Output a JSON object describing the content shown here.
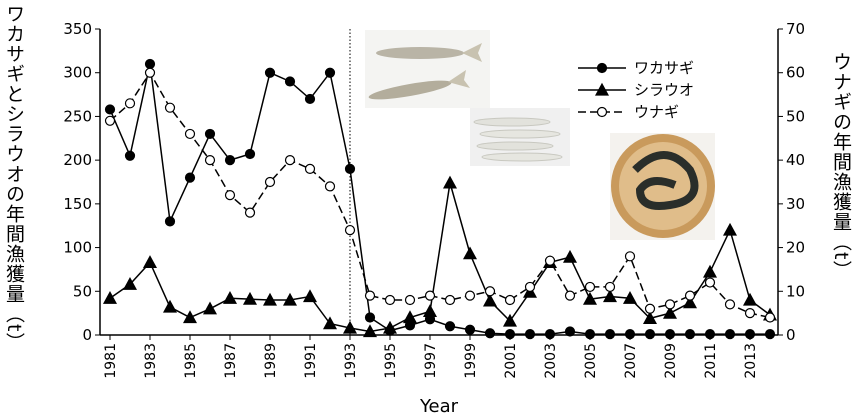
{
  "chart_data": {
    "type": "line",
    "xlabel": "Year",
    "ylabel": "ワカサギとシラウオの年間漁獲量（t）",
    "y2label": "ウナギの年間漁獲量（t）",
    "x": [
      1981,
      1982,
      1983,
      1984,
      1985,
      1986,
      1987,
      1988,
      1989,
      1990,
      1991,
      1992,
      1993,
      1994,
      1995,
      1996,
      1997,
      1998,
      1999,
      2000,
      2001,
      2002,
      2003,
      2004,
      2005,
      2006,
      2007,
      2008,
      2009,
      2010,
      2011,
      2012,
      2013,
      2014
    ],
    "xlim": [
      1980.5,
      2014.4
    ],
    "xticks": [
      1981,
      1983,
      1985,
      1987,
      1989,
      1991,
      1993,
      1995,
      1997,
      1999,
      2001,
      2003,
      2005,
      2007,
      2009,
      2011,
      2013
    ],
    "ylim": [
      0,
      350
    ],
    "yticks": [
      0,
      50,
      100,
      150,
      200,
      250,
      300,
      350
    ],
    "y2lim": [
      0,
      70
    ],
    "y2ticks": [
      0,
      10,
      20,
      30,
      40,
      50,
      60,
      70
    ],
    "vline": 1993,
    "series": [
      {
        "name": "ワカサギ",
        "color": "#000000",
        "marker": "circle-filled",
        "dash": false,
        "values": [
          258,
          205,
          310,
          130,
          180,
          230,
          200,
          207,
          300,
          290,
          270,
          300,
          190,
          20,
          5,
          11,
          18,
          10,
          6,
          2,
          1,
          1,
          1,
          4,
          1,
          1,
          1,
          1,
          1,
          1,
          1,
          1,
          1,
          1
        ]
      },
      {
        "name": "シラウオ",
        "color": "#000000",
        "marker": "triangle",
        "dash": false,
        "values": [
          42,
          58,
          83,
          32,
          20,
          30,
          42,
          41,
          40,
          40,
          44,
          13,
          8,
          4,
          8,
          20,
          27,
          174,
          93,
          39,
          16,
          49,
          83,
          89,
          41,
          44,
          42,
          19,
          25,
          37,
          72,
          120,
          40,
          23
        ]
      },
      {
        "name": "ウナギ",
        "color": "#000000",
        "marker": "circle-open",
        "dash": true,
        "axis": "y2",
        "values": [
          49,
          53,
          60,
          52,
          46,
          40,
          32,
          28,
          35,
          40,
          38,
          34,
          24,
          9,
          8,
          8,
          9,
          8,
          9,
          10,
          8,
          11,
          17,
          9,
          11,
          11,
          18,
          6,
          7,
          9,
          12,
          7,
          5,
          4
        ]
      }
    ]
  }
}
